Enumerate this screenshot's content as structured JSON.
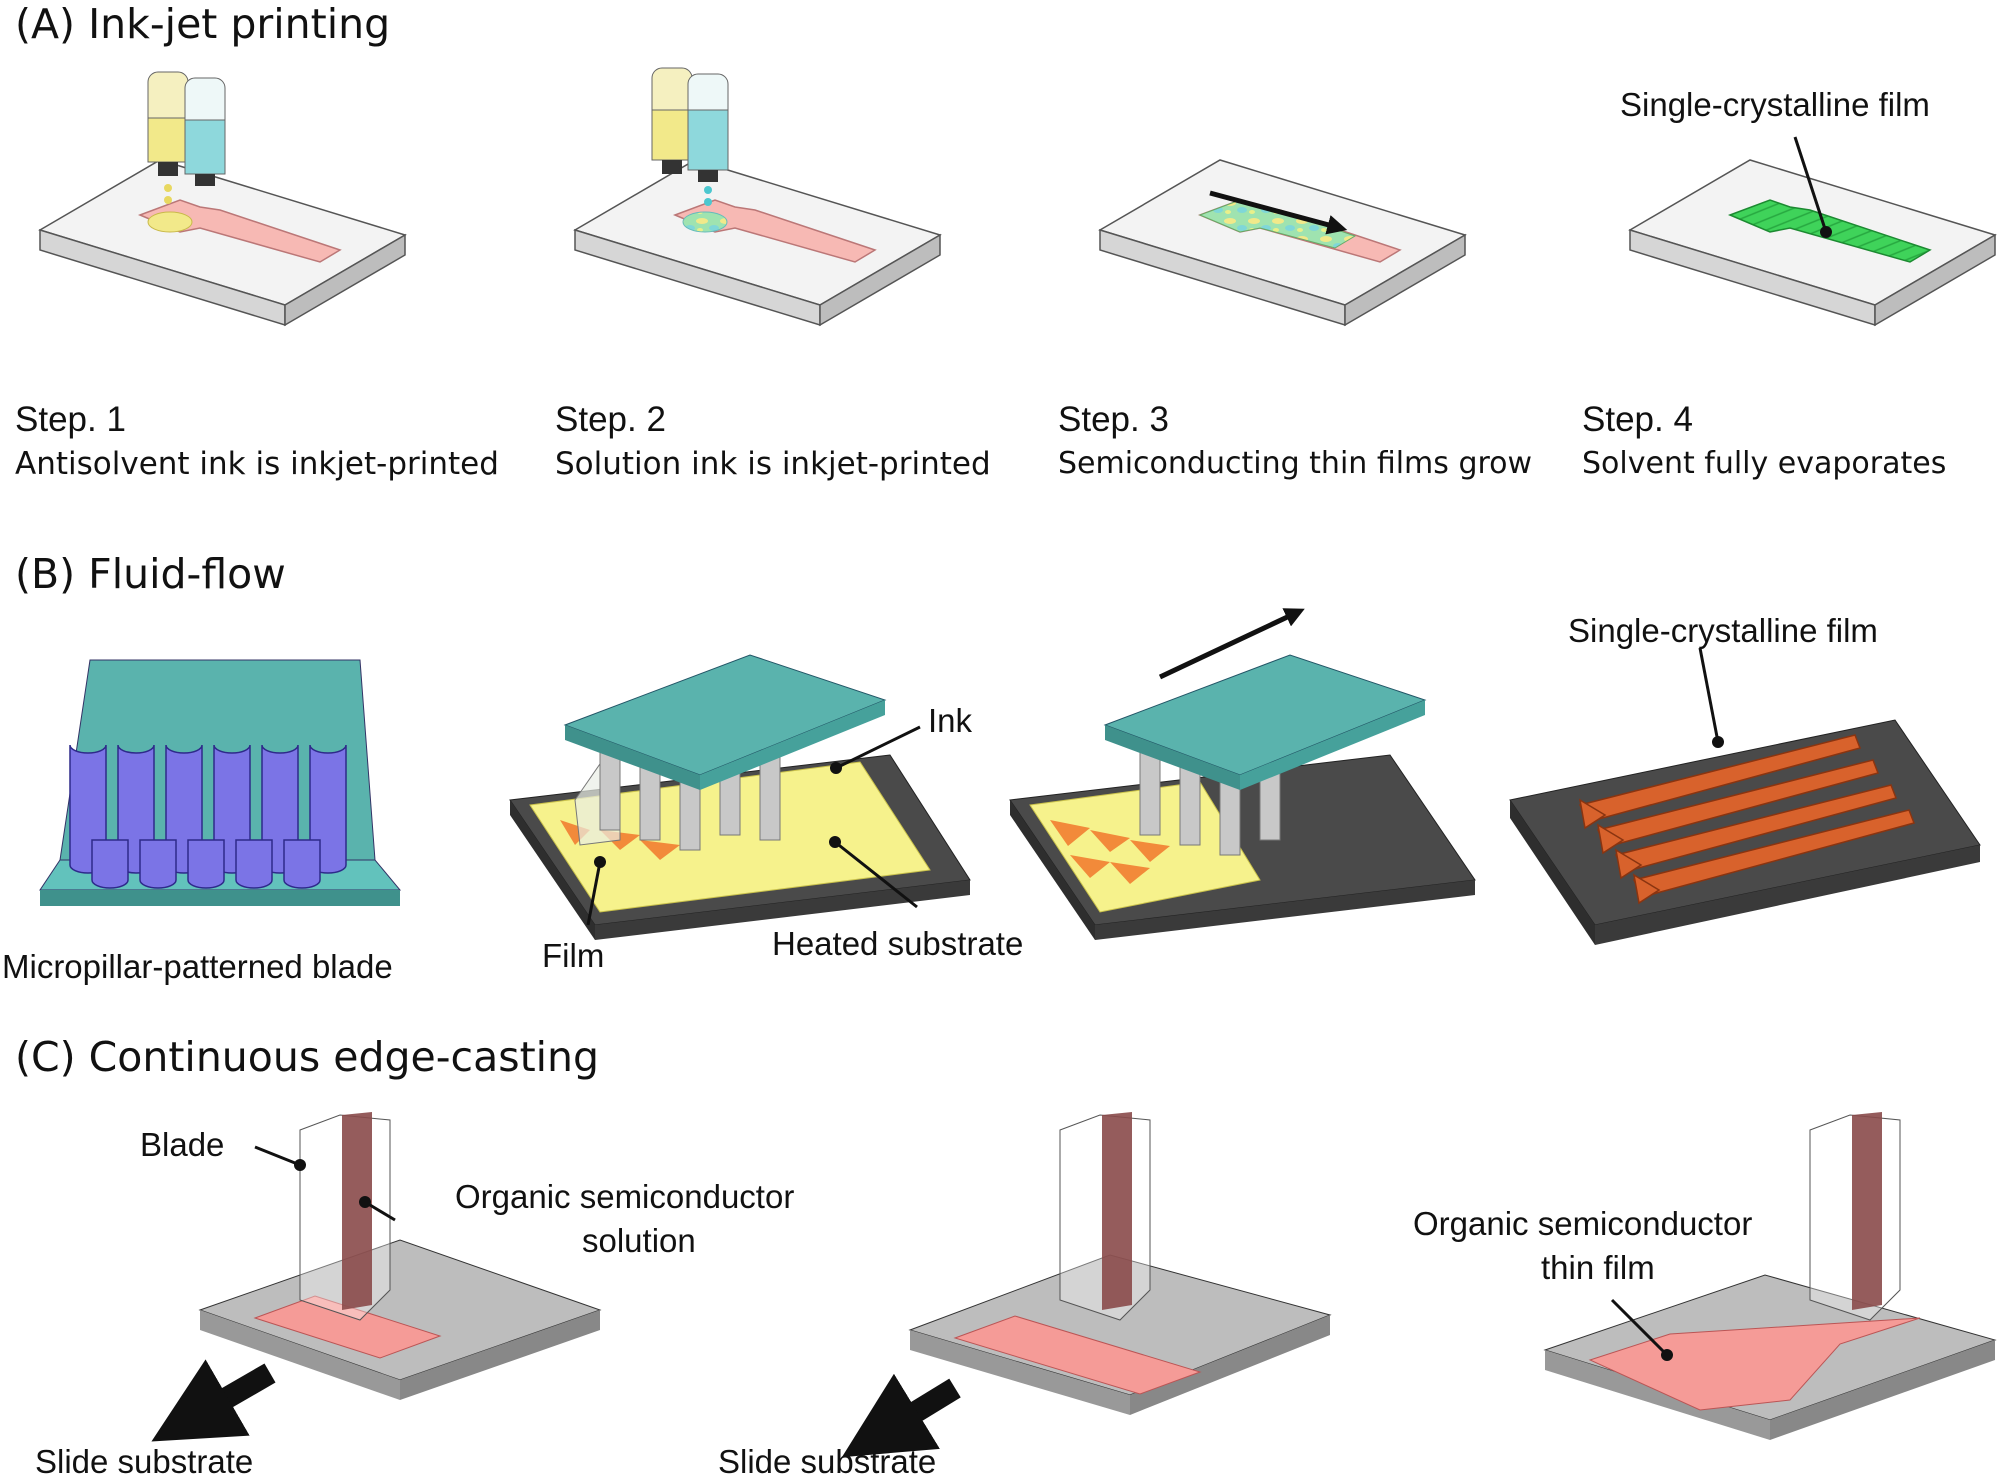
{
  "panel_a": {
    "title": "(A) Ink-jet printing",
    "film_label": "Single-crystalline film",
    "steps": [
      {
        "step": "Step. 1",
        "caption": "Antisolvent ink is inkjet-printed"
      },
      {
        "step": "Step. 2",
        "caption": "Solution ink is inkjet-printed"
      },
      {
        "step": "Step. 3",
        "caption": "Semiconducting thin films grow"
      },
      {
        "step": "Step. 4",
        "caption": "Solvent fully evaporates"
      }
    ]
  },
  "panel_b": {
    "title": "(B) Fluid-flow",
    "blade_label": "Micropillar-patterned blade",
    "ink_label": "Ink",
    "film_label": "Film",
    "substrate_label": "Heated substrate",
    "result_label": "Single-crystalline film"
  },
  "panel_c": {
    "title": "(C) Continuous edge-casting",
    "blade_label": "Blade",
    "solution_label_line1": "Organic semiconductor",
    "solution_label_line2": "solution",
    "slide_label_1": "Slide substrate",
    "slide_label_2": "Slide substrate",
    "thin_film_line1": "Organic semiconductor",
    "thin_film_line2": "thin film"
  },
  "colors": {
    "substrate_white": "#f3f3f3",
    "electrode_pink": "#f7b9b4",
    "antisolvent_yellow": "#f2e98a",
    "solution_cyan": "#8ed8dc",
    "film_green": "#3fd35a",
    "blade_teal": "#5ab3ad",
    "pillar_purple": "#7b74e6",
    "ink_yellow": "#f6f28c",
    "crystal_orange": "#d8622c",
    "heated_dark": "#555555",
    "edge_blade_brown": "#8a4a4a",
    "edge_film_pink": "#f59b97",
    "edge_substrate_grey": "#bdbdbd"
  }
}
